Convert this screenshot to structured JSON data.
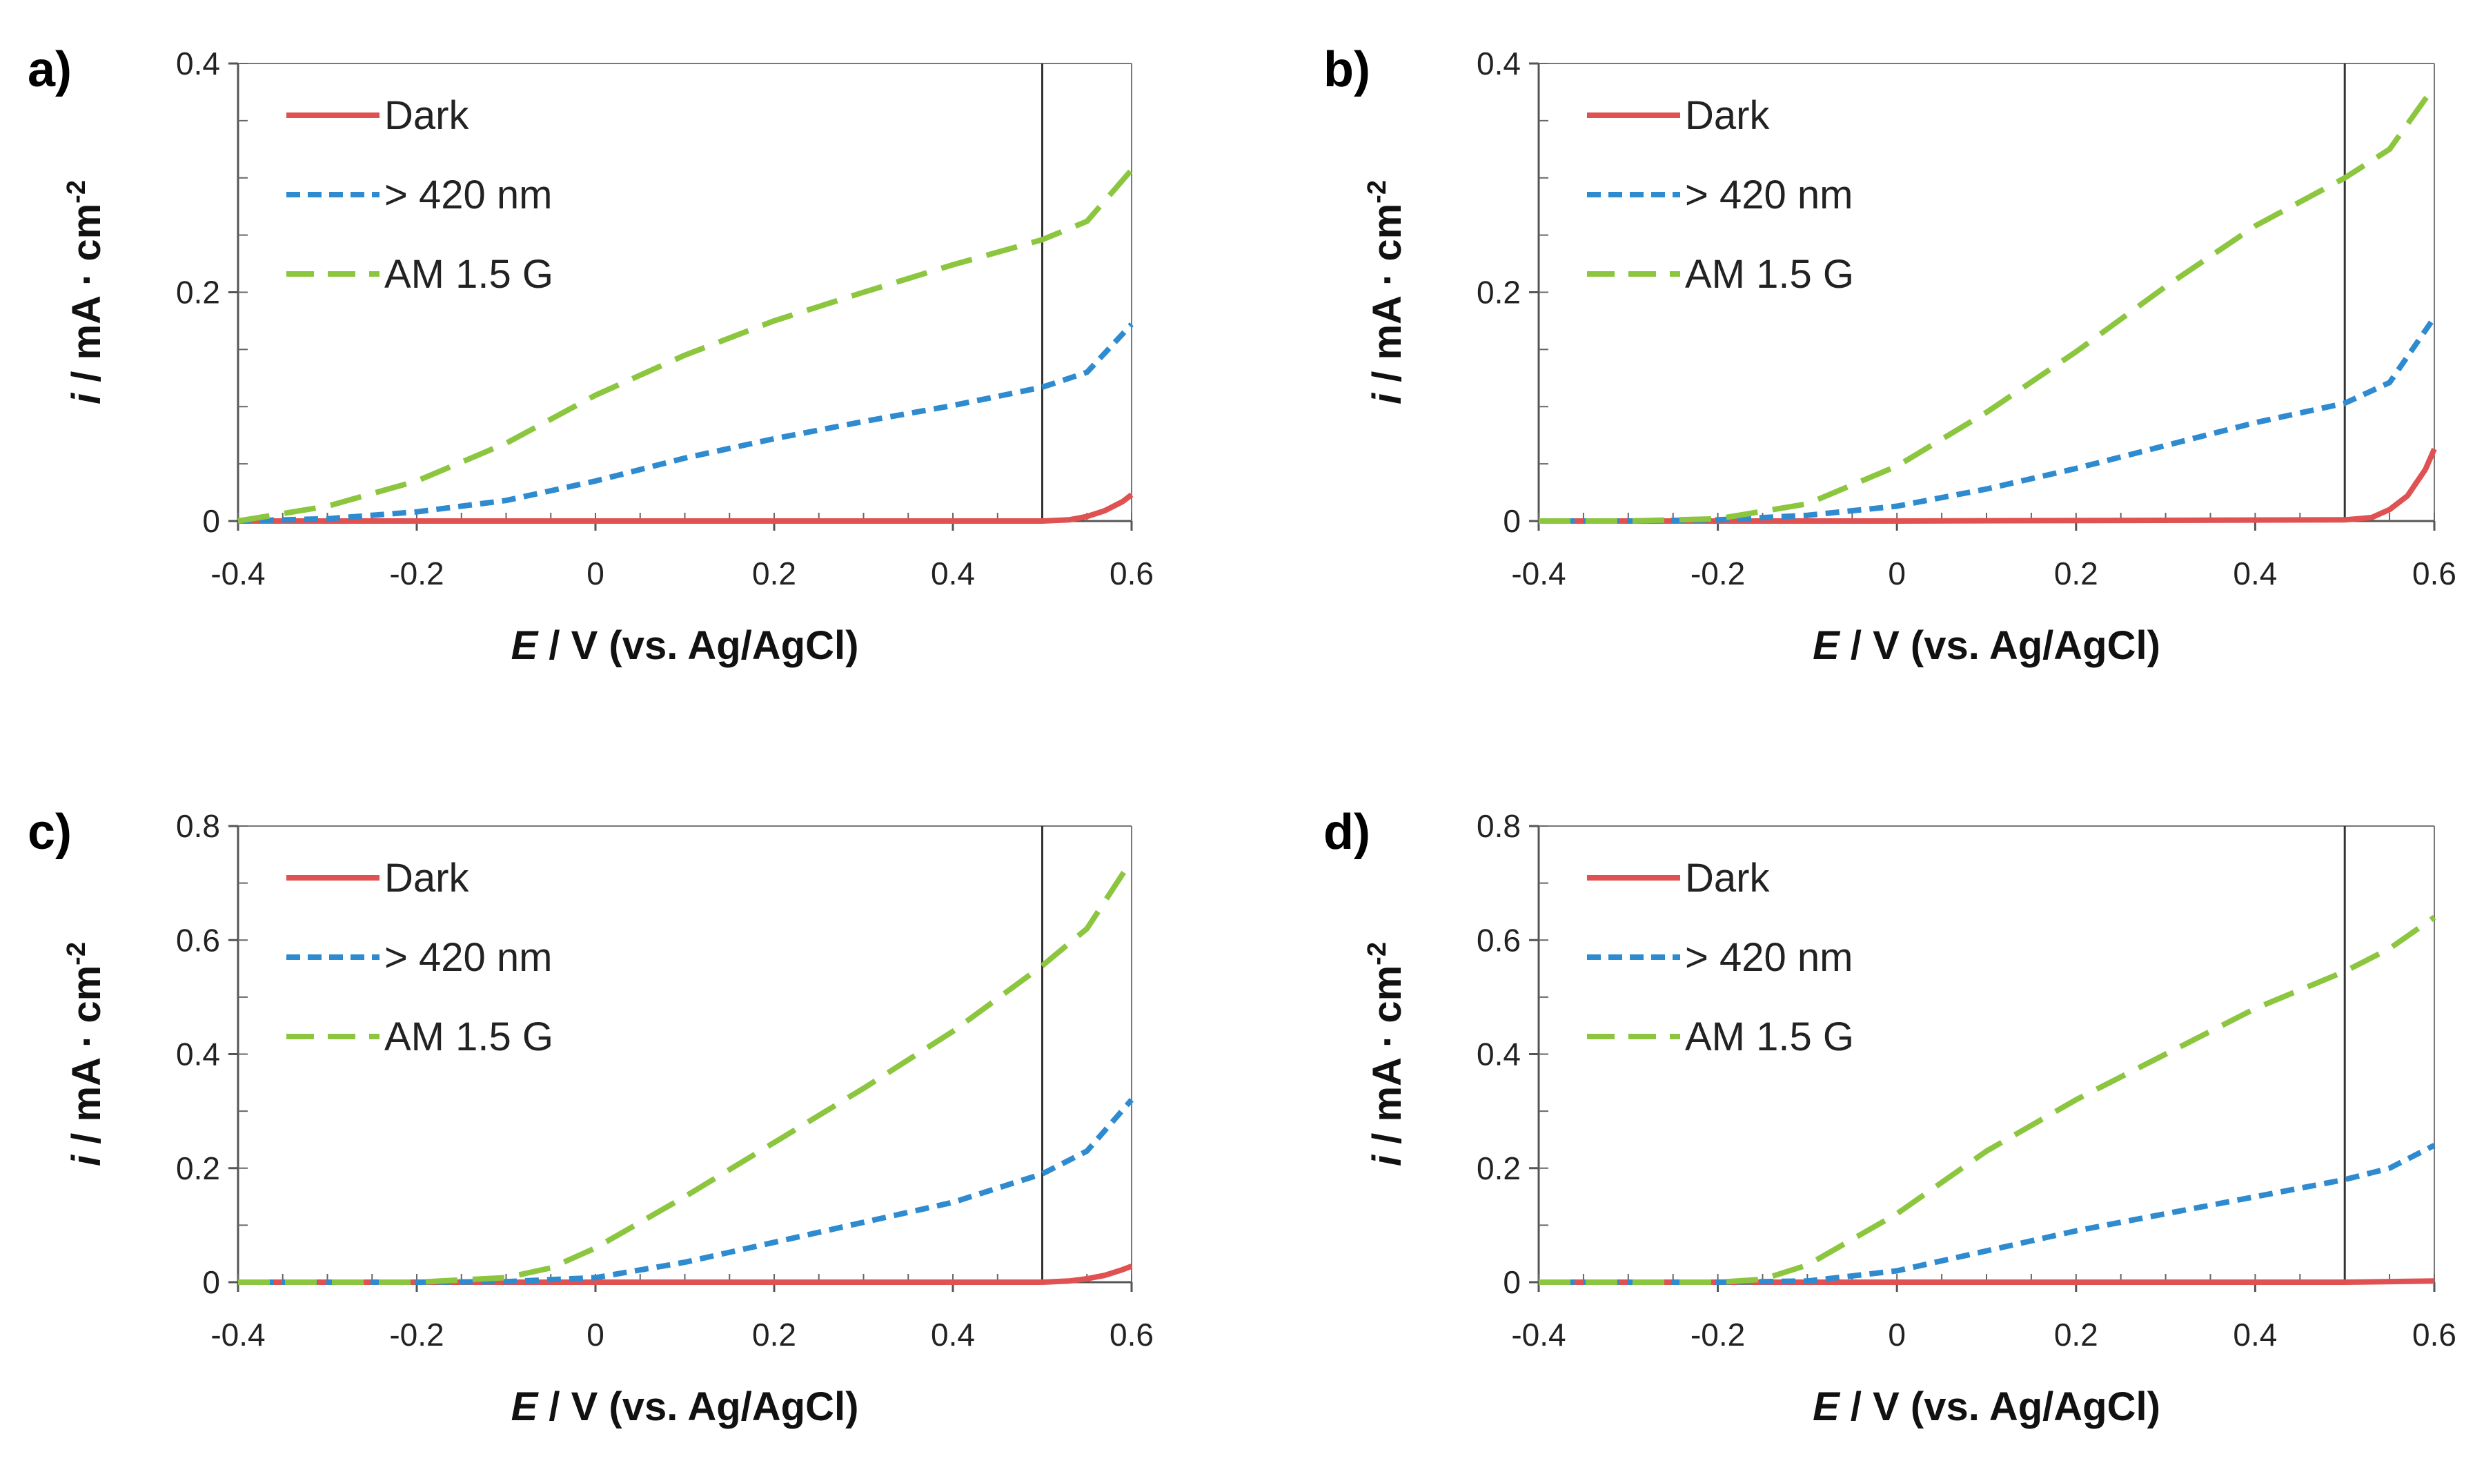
{
  "chart_data": [
    {
      "type": "line",
      "panel_label": "a)",
      "xlabel": {
        "italic": "E",
        "rest": " / V (vs. Ag/AgCl)"
      },
      "ylabel": {
        "italic": "i",
        "rest": " / mA · cm",
        "sup": "-2"
      },
      "xlim": [
        -0.4,
        0.6
      ],
      "ylim": [
        0,
        0.4
      ],
      "xticks": [
        "-0.4",
        "-0.2",
        "0",
        "0.2",
        "0.4",
        "0.6"
      ],
      "yticks": [
        "0",
        "0.2",
        "0.4"
      ],
      "vline_x": 0.5,
      "legend": [
        "Dark",
        "> 420 nm",
        "AM 1.5 G"
      ],
      "series": [
        {
          "name": "Dark",
          "color": "#e05252",
          "style": "solid",
          "x": [
            -0.4,
            0.0,
            0.5,
            0.53,
            0.55,
            0.57,
            0.59,
            0.6
          ],
          "y": [
            0,
            0,
            0,
            0.001,
            0.004,
            0.009,
            0.017,
            0.023
          ]
        },
        {
          "name": "> 420 nm",
          "color": "#2f8bd0",
          "style": "short-dash",
          "x": [
            -0.4,
            -0.3,
            -0.2,
            -0.1,
            0.0,
            0.1,
            0.2,
            0.3,
            0.4,
            0.5,
            0.55,
            0.6
          ],
          "y": [
            0,
            0.002,
            0.008,
            0.018,
            0.035,
            0.055,
            0.072,
            0.087,
            0.101,
            0.117,
            0.13,
            0.172
          ]
        },
        {
          "name": "AM 1.5 G",
          "color": "#8cc63f",
          "style": "long-dash",
          "x": [
            -0.4,
            -0.3,
            -0.2,
            -0.1,
            0.0,
            0.1,
            0.2,
            0.3,
            0.4,
            0.5,
            0.55,
            0.6
          ],
          "y": [
            0,
            0.013,
            0.035,
            0.068,
            0.11,
            0.145,
            0.175,
            0.2,
            0.224,
            0.246,
            0.262,
            0.307
          ]
        }
      ]
    },
    {
      "type": "line",
      "panel_label": "b)",
      "xlabel": {
        "italic": "E",
        "rest": " / V (vs. Ag/AgCl)"
      },
      "ylabel": {
        "italic": "i",
        "rest": " / mA · cm",
        "sup": "-2"
      },
      "xlim": [
        -0.4,
        0.6
      ],
      "ylim": [
        0,
        0.4
      ],
      "xticks": [
        "-0.4",
        "-0.2",
        "0",
        "0.2",
        "0.4",
        "0.6"
      ],
      "yticks": [
        "0",
        "0.2",
        "0.4"
      ],
      "vline_x": 0.5,
      "legend": [
        "Dark",
        "> 420 nm",
        "AM 1.5 G"
      ],
      "series": [
        {
          "name": "Dark",
          "color": "#e05252",
          "style": "solid",
          "x": [
            -0.4,
            0.0,
            0.5,
            0.53,
            0.55,
            0.57,
            0.59,
            0.6
          ],
          "y": [
            0,
            0,
            0.001,
            0.003,
            0.01,
            0.022,
            0.045,
            0.063
          ]
        },
        {
          "name": "> 420 nm",
          "color": "#2f8bd0",
          "style": "short-dash",
          "x": [
            -0.4,
            -0.3,
            -0.2,
            -0.1,
            0.0,
            0.1,
            0.2,
            0.3,
            0.4,
            0.5,
            0.55,
            0.6
          ],
          "y": [
            0,
            0,
            0.001,
            0.005,
            0.013,
            0.028,
            0.046,
            0.066,
            0.086,
            0.103,
            0.121,
            0.178
          ]
        },
        {
          "name": "AM 1.5 G",
          "color": "#8cc63f",
          "style": "long-dash",
          "x": [
            -0.4,
            -0.3,
            -0.2,
            -0.1,
            0.0,
            0.1,
            0.2,
            0.3,
            0.4,
            0.5,
            0.55,
            0.6
          ],
          "y": [
            0,
            0,
            0.002,
            0.015,
            0.048,
            0.095,
            0.148,
            0.205,
            0.258,
            0.3,
            0.325,
            0.38
          ]
        }
      ]
    },
    {
      "type": "line",
      "panel_label": "c)",
      "xlabel": {
        "italic": "E",
        "rest": " / V (vs. Ag/AgCl)"
      },
      "ylabel": {
        "italic": "i",
        "rest": " / mA · cm",
        "sup": "-2"
      },
      "xlim": [
        -0.4,
        0.6
      ],
      "ylim": [
        0,
        0.8
      ],
      "xticks": [
        "-0.4",
        "-0.2",
        "0",
        "0.2",
        "0.4",
        "0.6"
      ],
      "yticks": [
        "0",
        "0.2",
        "0.4",
        "0.6",
        "0.8"
      ],
      "vline_x": 0.5,
      "legend": [
        "Dark",
        "> 420 nm",
        "AM 1.5 G"
      ],
      "series": [
        {
          "name": "Dark",
          "color": "#e05252",
          "style": "solid",
          "x": [
            -0.4,
            0.0,
            0.5,
            0.53,
            0.55,
            0.57,
            0.59,
            0.6
          ],
          "y": [
            0,
            0,
            0,
            0.002,
            0.006,
            0.012,
            0.022,
            0.028
          ]
        },
        {
          "name": "> 420 nm",
          "color": "#2f8bd0",
          "style": "short-dash",
          "x": [
            -0.4,
            -0.2,
            -0.1,
            0.0,
            0.1,
            0.2,
            0.3,
            0.4,
            0.5,
            0.55,
            0.6
          ],
          "y": [
            0,
            0,
            0.001,
            0.008,
            0.035,
            0.07,
            0.105,
            0.14,
            0.19,
            0.23,
            0.32
          ]
        },
        {
          "name": "AM 1.5 G",
          "color": "#8cc63f",
          "style": "long-dash",
          "x": [
            -0.4,
            -0.2,
            -0.1,
            -0.05,
            0.0,
            0.1,
            0.2,
            0.3,
            0.4,
            0.5,
            0.55,
            0.6
          ],
          "y": [
            0,
            0,
            0.008,
            0.025,
            0.06,
            0.15,
            0.245,
            0.34,
            0.44,
            0.555,
            0.62,
            0.74
          ]
        }
      ]
    },
    {
      "type": "line",
      "panel_label": "d)",
      "xlabel": {
        "italic": "E",
        "rest": " / V (vs. Ag/AgCl)"
      },
      "ylabel": {
        "italic": "i",
        "rest": " / mA · cm",
        "sup": "-2"
      },
      "xlim": [
        -0.4,
        0.6
      ],
      "ylim": [
        0,
        0.8
      ],
      "xticks": [
        "-0.4",
        "-0.2",
        "0",
        "0.2",
        "0.4",
        "0.6"
      ],
      "yticks": [
        "0",
        "0.2",
        "0.4",
        "0.6",
        "0.8"
      ],
      "vline_x": 0.5,
      "legend": [
        "Dark",
        "> 420 nm",
        "AM 1.5 G"
      ],
      "series": [
        {
          "name": "Dark",
          "color": "#e05252",
          "style": "solid",
          "x": [
            -0.4,
            0.0,
            0.5,
            0.6
          ],
          "y": [
            0,
            0,
            0,
            0.002
          ]
        },
        {
          "name": "> 420 nm",
          "color": "#2f8bd0",
          "style": "short-dash",
          "x": [
            -0.4,
            -0.2,
            -0.1,
            0.0,
            0.1,
            0.2,
            0.3,
            0.4,
            0.5,
            0.55,
            0.6
          ],
          "y": [
            0,
            0,
            0.002,
            0.02,
            0.055,
            0.09,
            0.12,
            0.15,
            0.18,
            0.2,
            0.24
          ]
        },
        {
          "name": "AM 1.5 G",
          "color": "#8cc63f",
          "style": "long-dash",
          "x": [
            -0.4,
            -0.2,
            -0.15,
            -0.1,
            0.0,
            0.1,
            0.2,
            0.3,
            0.4,
            0.5,
            0.55,
            0.6
          ],
          "y": [
            0,
            0,
            0.005,
            0.03,
            0.12,
            0.23,
            0.32,
            0.4,
            0.48,
            0.545,
            0.585,
            0.64
          ]
        }
      ]
    }
  ]
}
